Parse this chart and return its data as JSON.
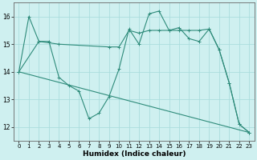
{
  "xlabel": "Humidex (Indice chaleur)",
  "bg_color": "#cff0f0",
  "grid_color": "#aadddd",
  "line_color": "#2e8b7a",
  "ylim": [
    11.5,
    16.5
  ],
  "xlim": [
    -0.5,
    23.5
  ],
  "yticks": [
    12,
    13,
    14,
    15,
    16
  ],
  "xticks": [
    0,
    1,
    2,
    3,
    4,
    5,
    6,
    7,
    8,
    9,
    10,
    11,
    12,
    13,
    14,
    15,
    16,
    17,
    18,
    19,
    20,
    21,
    22,
    23
  ],
  "series1": [
    [
      0,
      14.0
    ],
    [
      1,
      16.0
    ],
    [
      2,
      15.1
    ],
    [
      3,
      15.1
    ],
    [
      4,
      13.8
    ],
    [
      5,
      13.5
    ],
    [
      6,
      13.3
    ],
    [
      7,
      12.3
    ],
    [
      8,
      12.5
    ],
    [
      9,
      13.1
    ],
    [
      10,
      14.1
    ],
    [
      11,
      15.55
    ],
    [
      12,
      15.0
    ],
    [
      13,
      16.1
    ],
    [
      14,
      16.2
    ],
    [
      15,
      15.5
    ],
    [
      16,
      15.6
    ],
    [
      17,
      15.2
    ],
    [
      18,
      15.1
    ],
    [
      19,
      15.55
    ],
    [
      20,
      14.8
    ],
    [
      21,
      13.6
    ],
    [
      22,
      12.1
    ],
    [
      23,
      11.8
    ]
  ],
  "series2": [
    [
      0,
      14.0
    ],
    [
      2,
      15.1
    ],
    [
      4,
      15.0
    ],
    [
      9,
      14.9
    ],
    [
      10,
      14.9
    ],
    [
      11,
      15.5
    ],
    [
      12,
      15.4
    ],
    [
      13,
      15.5
    ],
    [
      14,
      15.5
    ],
    [
      15,
      15.5
    ],
    [
      16,
      15.5
    ],
    [
      17,
      15.5
    ],
    [
      18,
      15.5
    ],
    [
      19,
      15.55
    ],
    [
      20,
      14.8
    ],
    [
      21,
      13.6
    ],
    [
      22,
      12.1
    ],
    [
      23,
      11.8
    ]
  ],
  "series3": [
    [
      0,
      14.0
    ],
    [
      23,
      11.8
    ]
  ]
}
